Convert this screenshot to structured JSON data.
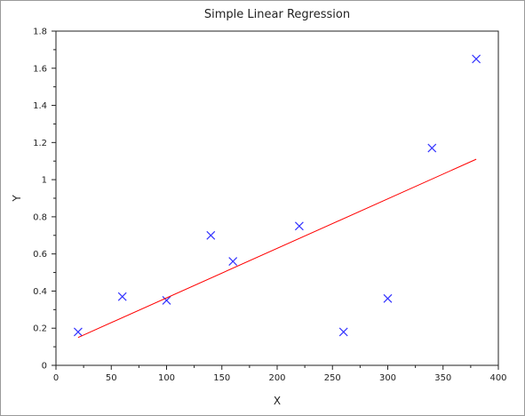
{
  "chart_data": {
    "type": "scatter",
    "title": "Simple Linear Regression",
    "xlabel": "X",
    "ylabel": "Y",
    "xlim": [
      0,
      400
    ],
    "ylim": [
      0,
      1.8
    ],
    "x_ticks": [
      0,
      50,
      100,
      150,
      200,
      250,
      300,
      350,
      400
    ],
    "y_ticks": [
      0,
      0.2,
      0.4,
      0.6,
      0.8,
      1,
      1.2,
      1.4,
      1.6,
      1.8
    ],
    "y_tick_labels": [
      "0",
      "0.2",
      "0.4",
      "0.6",
      "0.8",
      "1",
      "1.2",
      "1.4",
      "1.6",
      "1.8"
    ],
    "grid": false,
    "series": [
      {
        "kind": "scatter",
        "marker": "x",
        "color": "#3333ff",
        "points": [
          {
            "x": 20,
            "y": 0.18
          },
          {
            "x": 60,
            "y": 0.37
          },
          {
            "x": 100,
            "y": 0.35
          },
          {
            "x": 140,
            "y": 0.7
          },
          {
            "x": 160,
            "y": 0.56
          },
          {
            "x": 220,
            "y": 0.75
          },
          {
            "x": 260,
            "y": 0.18
          },
          {
            "x": 300,
            "y": 0.36
          },
          {
            "x": 340,
            "y": 1.17
          },
          {
            "x": 380,
            "y": 1.65
          }
        ]
      },
      {
        "kind": "line",
        "color": "#ff0000",
        "points": [
          {
            "x": 20,
            "y": 0.15
          },
          {
            "x": 380,
            "y": 1.11
          }
        ]
      }
    ]
  }
}
